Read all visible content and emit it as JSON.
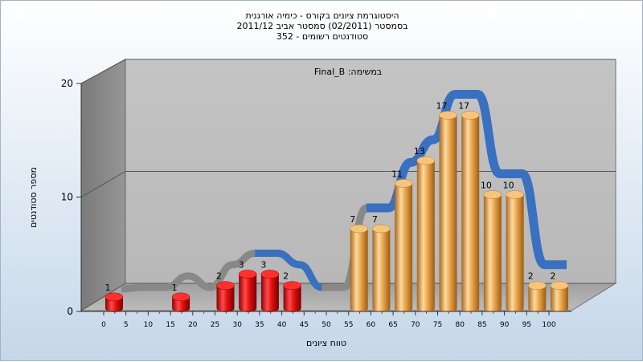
{
  "chart_data": {
    "type": "bar",
    "title_lines": [
      "היסטוגרמת ציונים בקורס - כימיה אורגנית",
      "בסמסטר  (02/2011)  סמסטר אביב 2011/12",
      "352 - סטודנטים רשומים"
    ],
    "annotation": "Final_B :במשימה",
    "xlabel": "טווח ציונים",
    "ylabel": "מספר סטודנטים",
    "x_ticks": [
      "0",
      "5",
      "10",
      "15",
      "20",
      "25",
      "30",
      "35",
      "40",
      "45",
      "50",
      "55",
      "60",
      "65",
      "70",
      "75",
      "80",
      "85",
      "90",
      "95",
      "100"
    ],
    "y_ticks": [
      "0",
      "10",
      "20"
    ],
    "ylim": [
      0,
      20
    ],
    "grid": true,
    "series": [
      {
        "values": [
          1,
          0,
          0,
          1,
          0,
          2,
          3,
          3,
          2,
          0,
          0,
          7,
          7,
          11,
          13,
          17,
          17,
          10,
          10,
          2,
          2
        ],
        "fail_color": "#d81818",
        "pass_color": "#e9a84a",
        "pass_threshold_index": 11
      }
    ],
    "trend_colors": [
      "#888888",
      "#3a70c0"
    ]
  }
}
